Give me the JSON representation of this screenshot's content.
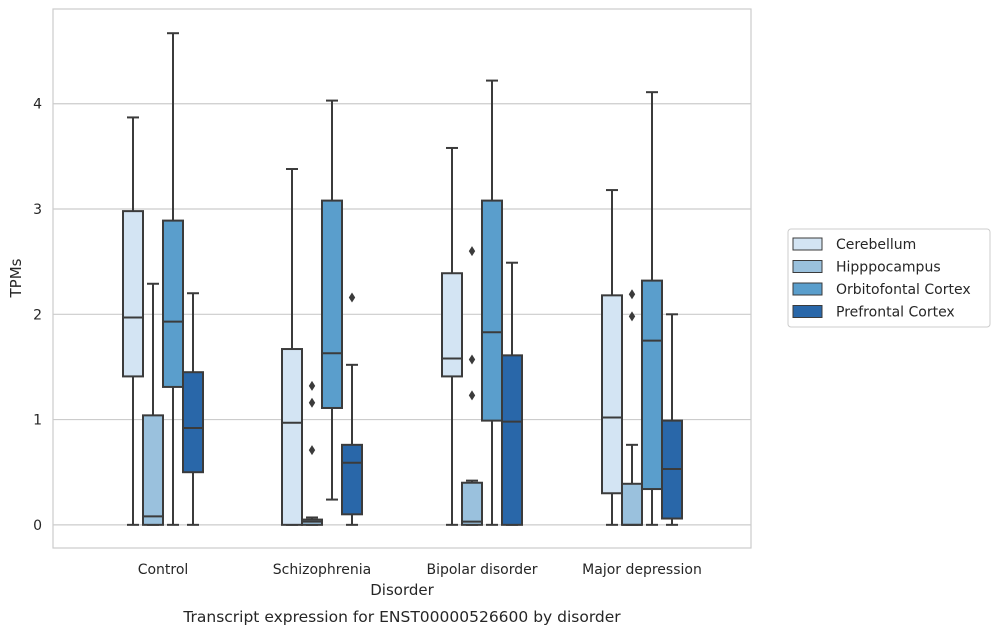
{
  "chart_data": {
    "type": "boxplot",
    "caption": "Transcript expression for ENST00000526600 by disorder",
    "xlabel": "Disorder",
    "ylabel": "TPMs",
    "ylim": [
      -0.22,
      4.9
    ],
    "yticks": [
      0,
      1,
      2,
      3,
      4
    ],
    "grid": "horizontal",
    "legend_position": "right",
    "categories": [
      "Control",
      "Schizophrenia",
      "Bipolar disorder",
      "Major depression"
    ],
    "series": [
      {
        "name": "Cerebellum",
        "color": "#d3e4f3",
        "boxes": [
          {
            "whislo": 0,
            "q1": 1.41,
            "med": 1.97,
            "q3": 2.98,
            "whishi": 3.87,
            "fliers": []
          },
          {
            "whislo": 0,
            "q1": 0,
            "med": 0.97,
            "q3": 1.67,
            "whishi": 3.38,
            "fliers": []
          },
          {
            "whislo": 0,
            "q1": 1.41,
            "med": 1.58,
            "q3": 2.39,
            "whishi": 3.58,
            "fliers": []
          },
          {
            "whislo": 0,
            "q1": 0.3,
            "med": 1.02,
            "q3": 2.18,
            "whishi": 3.18,
            "fliers": []
          }
        ]
      },
      {
        "name": "Hipppocampus",
        "color": "#9ac1dd",
        "boxes": [
          {
            "whislo": 0,
            "q1": 0,
            "med": 0.08,
            "q3": 1.04,
            "whishi": 2.29,
            "fliers": []
          },
          {
            "whislo": 0,
            "q1": 0,
            "med": 0.03,
            "q3": 0.05,
            "whishi": 0.07,
            "fliers": [
              0.71,
              1.16,
              1.32
            ]
          },
          {
            "whislo": 0,
            "q1": 0,
            "med": 0.03,
            "q3": 0.4,
            "whishi": 0.42,
            "fliers": [
              1.23,
              1.57,
              2.6
            ]
          },
          {
            "whislo": 0,
            "q1": 0,
            "med": 0,
            "q3": 0.39,
            "whishi": 0.76,
            "fliers": [
              1.98,
              2.19
            ]
          }
        ]
      },
      {
        "name": "Orbitofontal Cortex",
        "color": "#5a9ecc",
        "boxes": [
          {
            "whislo": 0,
            "q1": 1.31,
            "med": 1.93,
            "q3": 2.89,
            "whishi": 4.67,
            "fliers": []
          },
          {
            "whislo": 0.24,
            "q1": 1.11,
            "med": 1.63,
            "q3": 3.08,
            "whishi": 4.03,
            "fliers": []
          },
          {
            "whislo": 0,
            "q1": 0.99,
            "med": 1.83,
            "q3": 3.08,
            "whishi": 4.22,
            "fliers": []
          },
          {
            "whislo": 0,
            "q1": 0.34,
            "med": 1.75,
            "q3": 2.32,
            "whishi": 4.11,
            "fliers": []
          }
        ]
      },
      {
        "name": "Prefrontal Cortex",
        "color": "#2967a9",
        "boxes": [
          {
            "whislo": 0,
            "q1": 0.5,
            "med": 0.92,
            "q3": 1.45,
            "whishi": 2.2,
            "fliers": []
          },
          {
            "whislo": 0,
            "q1": 0.1,
            "med": 0.59,
            "q3": 0.76,
            "whishi": 1.52,
            "fliers": [
              2.16
            ]
          },
          {
            "whislo": 0,
            "q1": 0,
            "med": 0.98,
            "q3": 1.61,
            "whishi": 2.49,
            "fliers": []
          },
          {
            "whislo": 0,
            "q1": 0.06,
            "med": 0.53,
            "q3": 0.99,
            "whishi": 2.0,
            "fliers": []
          }
        ]
      }
    ]
  }
}
